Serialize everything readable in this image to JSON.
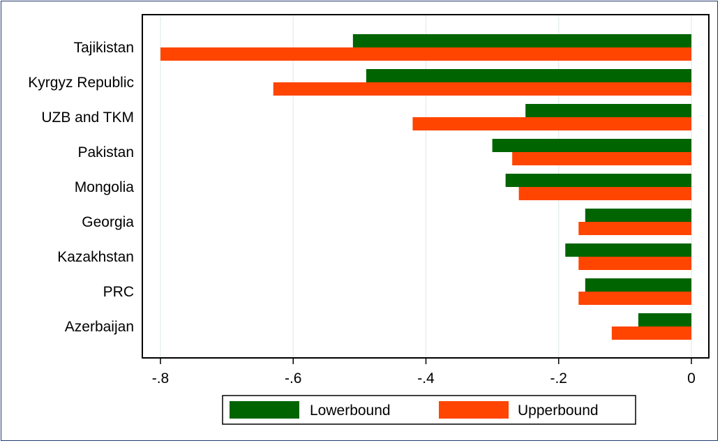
{
  "chart_data": {
    "type": "bar",
    "orientation": "horizontal",
    "categories": [
      "Tajikistan",
      "Kyrgyz Republic",
      "UZB and TKM",
      "Pakistan",
      "Mongolia",
      "Georgia",
      "Kazakhstan",
      "PRC",
      "Azerbaijan"
    ],
    "series": [
      {
        "name": "Lowerbound",
        "color": "#006400",
        "values": [
          -0.51,
          -0.49,
          -0.25,
          -0.3,
          -0.28,
          -0.16,
          -0.19,
          -0.16,
          -0.08
        ]
      },
      {
        "name": "Upperbound",
        "color": "#ff4500",
        "values": [
          -0.8,
          -0.63,
          -0.42,
          -0.27,
          -0.26,
          -0.17,
          -0.17,
          -0.17,
          -0.12
        ]
      }
    ],
    "xlim": [
      -0.8,
      0
    ],
    "xticks": [
      -0.8,
      -0.6,
      -0.4,
      -0.2,
      0
    ],
    "xtick_labels": [
      "-.8",
      "-.6",
      "-.4",
      "-.2",
      "0"
    ],
    "grid": true,
    "legend_position": "bottom",
    "title": "",
    "xlabel": "",
    "ylabel": ""
  }
}
